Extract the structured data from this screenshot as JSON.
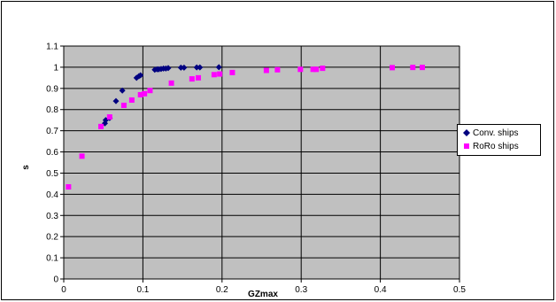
{
  "chart_data": {
    "type": "scatter",
    "xlabel": "GZmax",
    "ylabel": "s",
    "xlim": [
      0,
      0.5
    ],
    "ylim": [
      0,
      1.1
    ],
    "x_ticks": [
      "0",
      "0.1",
      "0.2",
      "0.3",
      "0.4",
      "0.5"
    ],
    "y_ticks": [
      "0",
      "0.1",
      "0.2",
      "0.3",
      "0.4",
      "0.5",
      "0.6",
      "0.7",
      "0.8",
      "0.9",
      "1",
      "1.1"
    ],
    "grid": "horizontal",
    "legend_position": "right",
    "plot_background": "#c0c0c0",
    "series": [
      {
        "name": "Conv. ships",
        "marker": "diamond",
        "color": "#000080",
        "points": [
          [
            0.052,
            0.735
          ],
          [
            0.053,
            0.75
          ],
          [
            0.058,
            0.76
          ],
          [
            0.066,
            0.84
          ],
          [
            0.074,
            0.89
          ],
          [
            0.092,
            0.95
          ],
          [
            0.095,
            0.958
          ],
          [
            0.097,
            0.962
          ],
          [
            0.115,
            0.988
          ],
          [
            0.118,
            0.99
          ],
          [
            0.12,
            0.99
          ],
          [
            0.123,
            0.992
          ],
          [
            0.126,
            0.994
          ],
          [
            0.129,
            0.994
          ],
          [
            0.132,
            0.996
          ],
          [
            0.148,
            0.998
          ],
          [
            0.152,
            0.998
          ],
          [
            0.168,
            0.999
          ],
          [
            0.172,
            0.999
          ],
          [
            0.196,
            1.0
          ]
        ]
      },
      {
        "name": "RoRo ships",
        "marker": "square",
        "color": "#ff00ff",
        "points": [
          [
            0.006,
            0.435
          ],
          [
            0.023,
            0.58
          ],
          [
            0.047,
            0.72
          ],
          [
            0.058,
            0.765
          ],
          [
            0.076,
            0.82
          ],
          [
            0.086,
            0.845
          ],
          [
            0.097,
            0.87
          ],
          [
            0.102,
            0.875
          ],
          [
            0.109,
            0.89
          ],
          [
            0.136,
            0.925
          ],
          [
            0.162,
            0.945
          ],
          [
            0.17,
            0.95
          ],
          [
            0.19,
            0.965
          ],
          [
            0.197,
            0.968
          ],
          [
            0.213,
            0.975
          ],
          [
            0.256,
            0.985
          ],
          [
            0.27,
            0.988
          ],
          [
            0.299,
            0.99
          ],
          [
            0.315,
            0.99
          ],
          [
            0.319,
            0.99
          ],
          [
            0.327,
            0.995
          ],
          [
            0.415,
            0.998
          ],
          [
            0.441,
            0.999
          ],
          [
            0.453,
            0.999
          ]
        ]
      }
    ]
  }
}
